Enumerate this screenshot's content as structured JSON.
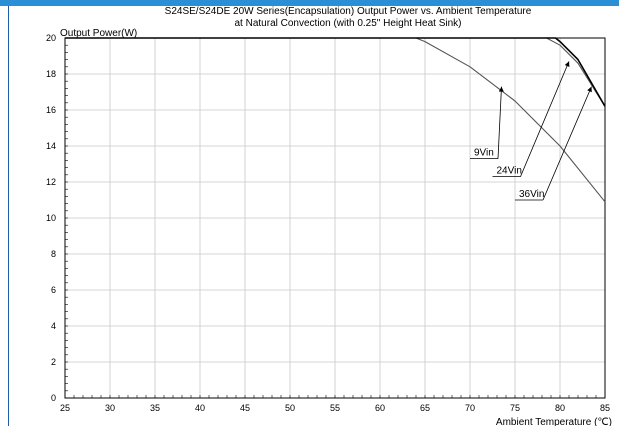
{
  "chart_data": {
    "type": "line",
    "title": "S24SE/S24DE 20W Series(Encapsulation)  Output Power vs. Ambient Temperature",
    "subtitle": "at Natural Convection (with 0.25\" Height Heat Sink)",
    "xlabel": "Ambient Temperature (℃)",
    "ylabel": "Output Power(W)",
    "xlim": [
      25,
      85
    ],
    "ylim": [
      0,
      20
    ],
    "x_ticks": [
      25,
      30,
      35,
      40,
      45,
      50,
      55,
      60,
      65,
      70,
      75,
      80,
      85
    ],
    "y_ticks": [
      0,
      2,
      4,
      6,
      8,
      10,
      12,
      14,
      16,
      18,
      20
    ],
    "grid": true,
    "series": [
      {
        "name": "9Vin",
        "color": "#555555",
        "x": [
          25,
          64,
          65,
          70,
          75,
          80,
          85
        ],
        "y": [
          20,
          20,
          19.8,
          18.4,
          16.5,
          14.0,
          10.9
        ]
      },
      {
        "name": "24Vin",
        "color": "#555555",
        "x": [
          25,
          78.5,
          80,
          82,
          85
        ],
        "y": [
          20,
          20,
          19.6,
          18.6,
          16.2
        ]
      },
      {
        "name": "36Vin",
        "color": "#000000",
        "x": [
          25,
          79.5,
          80,
          82,
          85
        ],
        "y": [
          20,
          20,
          19.8,
          18.8,
          16.2
        ]
      }
    ],
    "annotations": [
      {
        "text": "9Vin",
        "arrow_to": [
          73.5,
          17.3
        ],
        "text_at": [
          70,
          13.3
        ]
      },
      {
        "text": "24Vin",
        "arrow_to": [
          81,
          18.7
        ],
        "text_at": [
          72.5,
          12.3
        ]
      },
      {
        "text": "36Vin",
        "arrow_to": [
          83.5,
          17.3
        ],
        "text_at": [
          75,
          11.0
        ]
      }
    ]
  }
}
